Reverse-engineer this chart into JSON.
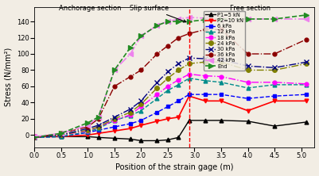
{
  "xlabel": "Position of the strain gage (m)",
  "ylabel": "Stress (N/mm²)",
  "xlim": [
    0.0,
    5.25
  ],
  "ylim": [
    -15,
    158
  ],
  "xticks": [
    0.0,
    0.5,
    1.0,
    1.5,
    2.0,
    2.5,
    3.0,
    3.5,
    4.0,
    4.5,
    5.0
  ],
  "yticks": [
    0,
    20,
    40,
    60,
    80,
    100,
    120,
    140
  ],
  "slip_surface_x": 2.9,
  "bg_color": "#f2ede4",
  "series": [
    {
      "label": "P1=5 kN",
      "color": "#000000",
      "marker": "^",
      "linestyle": "-",
      "linewidth": 1.0,
      "markersize": 3.5,
      "x": [
        0.0,
        0.5,
        1.0,
        1.2,
        1.5,
        1.8,
        2.0,
        2.3,
        2.5,
        2.7,
        2.9,
        3.2,
        3.5,
        4.0,
        4.5,
        5.1
      ],
      "y": [
        -2,
        -2,
        -2,
        -3,
        -4,
        -5,
        -7,
        -7,
        -6,
        -3,
        18,
        18,
        18,
        17,
        11,
        16
      ]
    },
    {
      "label": "P2=10 kN",
      "color": "#ff0000",
      "marker": "v",
      "linestyle": "-",
      "linewidth": 1.2,
      "markersize": 3.5,
      "x": [
        0.0,
        0.5,
        1.0,
        1.2,
        1.5,
        1.8,
        2.0,
        2.3,
        2.5,
        2.7,
        2.9,
        3.2,
        3.5,
        4.0,
        4.5,
        5.1
      ],
      "y": [
        -2,
        -2,
        0,
        2,
        5,
        8,
        12,
        17,
        20,
        22,
        48,
        42,
        42,
        30,
        42,
        42
      ]
    },
    {
      "label": "6 kPa",
      "color": "#0000ff",
      "marker": "s",
      "linestyle": "--",
      "linewidth": 1.0,
      "markersize": 3.5,
      "x": [
        0.0,
        0.5,
        1.0,
        1.2,
        1.5,
        1.8,
        2.0,
        2.3,
        2.5,
        2.7,
        2.9,
        3.2,
        3.5,
        4.0,
        4.5,
        5.1
      ],
      "y": [
        -3,
        -2,
        3,
        6,
        10,
        14,
        18,
        28,
        35,
        42,
        50,
        50,
        50,
        45,
        48,
        50
      ]
    },
    {
      "label": "12 kPa",
      "color": "#008b8b",
      "marker": "^",
      "linestyle": "--",
      "linewidth": 1.0,
      "markersize": 3.5,
      "x": [
        0.0,
        0.5,
        1.0,
        1.2,
        1.5,
        1.8,
        2.0,
        2.3,
        2.5,
        2.7,
        2.9,
        3.2,
        3.5,
        4.0,
        4.5,
        5.1
      ],
      "y": [
        -3,
        -2,
        4,
        8,
        18,
        24,
        30,
        45,
        55,
        62,
        70,
        67,
        65,
        58,
        62,
        62
      ]
    },
    {
      "label": "18 kPa",
      "color": "#ff00ff",
      "marker": "o",
      "linestyle": "-.",
      "linewidth": 1.0,
      "markersize": 3.5,
      "x": [
        0.0,
        0.5,
        1.0,
        1.2,
        1.5,
        1.8,
        2.0,
        2.3,
        2.5,
        2.7,
        2.9,
        3.2,
        3.5,
        4.0,
        4.5,
        5.1
      ],
      "y": [
        -2,
        0,
        5,
        10,
        18,
        25,
        35,
        50,
        60,
        68,
        75,
        73,
        72,
        65,
        65,
        63
      ]
    },
    {
      "label": "24 kPa",
      "color": "#808000",
      "marker": "o",
      "linestyle": "-.",
      "linewidth": 1.0,
      "markersize": 4,
      "x": [
        0.0,
        0.5,
        1.0,
        1.2,
        1.5,
        1.8,
        2.0,
        2.3,
        2.5,
        2.7,
        2.9,
        3.2,
        3.5,
        4.0,
        4.5,
        5.1
      ],
      "y": [
        -3,
        0,
        6,
        10,
        20,
        28,
        38,
        58,
        70,
        80,
        88,
        90,
        90,
        80,
        80,
        88
      ]
    },
    {
      "label": "30 kPa",
      "color": "#000080",
      "marker": "x",
      "linestyle": "-.",
      "linewidth": 1.0,
      "markersize": 4,
      "x": [
        0.0,
        0.5,
        1.0,
        1.2,
        1.5,
        1.8,
        2.0,
        2.3,
        2.5,
        2.7,
        2.9,
        3.2,
        3.5,
        4.0,
        4.5,
        5.1
      ],
      "y": [
        -3,
        0,
        8,
        12,
        22,
        32,
        42,
        65,
        78,
        88,
        95,
        94,
        93,
        85,
        83,
        90
      ]
    },
    {
      "label": "36 kPa",
      "color": "#8b0000",
      "marker": "o",
      "linestyle": "-.",
      "linewidth": 1.0,
      "markersize": 3.5,
      "x": [
        0.0,
        0.5,
        1.0,
        1.2,
        1.5,
        1.8,
        2.0,
        2.3,
        2.5,
        2.7,
        2.9,
        3.2,
        3.5,
        4.0,
        4.5,
        5.1
      ],
      "y": [
        -3,
        2,
        10,
        20,
        60,
        72,
        80,
        100,
        110,
        120,
        125,
        130,
        130,
        100,
        100,
        118
      ]
    },
    {
      "label": "42 kPa",
      "color": "#ee82ee",
      "marker": "<",
      "linestyle": "-.",
      "linewidth": 1.2,
      "markersize": 4,
      "x": [
        0.0,
        0.5,
        1.0,
        1.2,
        1.5,
        1.8,
        2.0,
        2.3,
        2.5,
        2.7,
        2.9,
        3.2,
        3.5,
        4.0,
        4.5,
        5.1
      ],
      "y": [
        -2,
        2,
        12,
        22,
        80,
        100,
        122,
        135,
        140,
        143,
        145,
        144,
        143,
        143,
        143,
        143
      ]
    },
    {
      "label": "End",
      "color": "#228b22",
      "marker": ">",
      "linestyle": "--",
      "linewidth": 1.2,
      "markersize": 4,
      "x": [
        0.0,
        0.5,
        1.0,
        1.2,
        1.5,
        1.8,
        2.0,
        2.3,
        2.5,
        2.7,
        2.9,
        3.2,
        3.5,
        4.0,
        4.5,
        5.1
      ],
      "y": [
        -3,
        2,
        15,
        22,
        80,
        108,
        122,
        135,
        140,
        140,
        140,
        142,
        143,
        143,
        143,
        148
      ]
    }
  ]
}
